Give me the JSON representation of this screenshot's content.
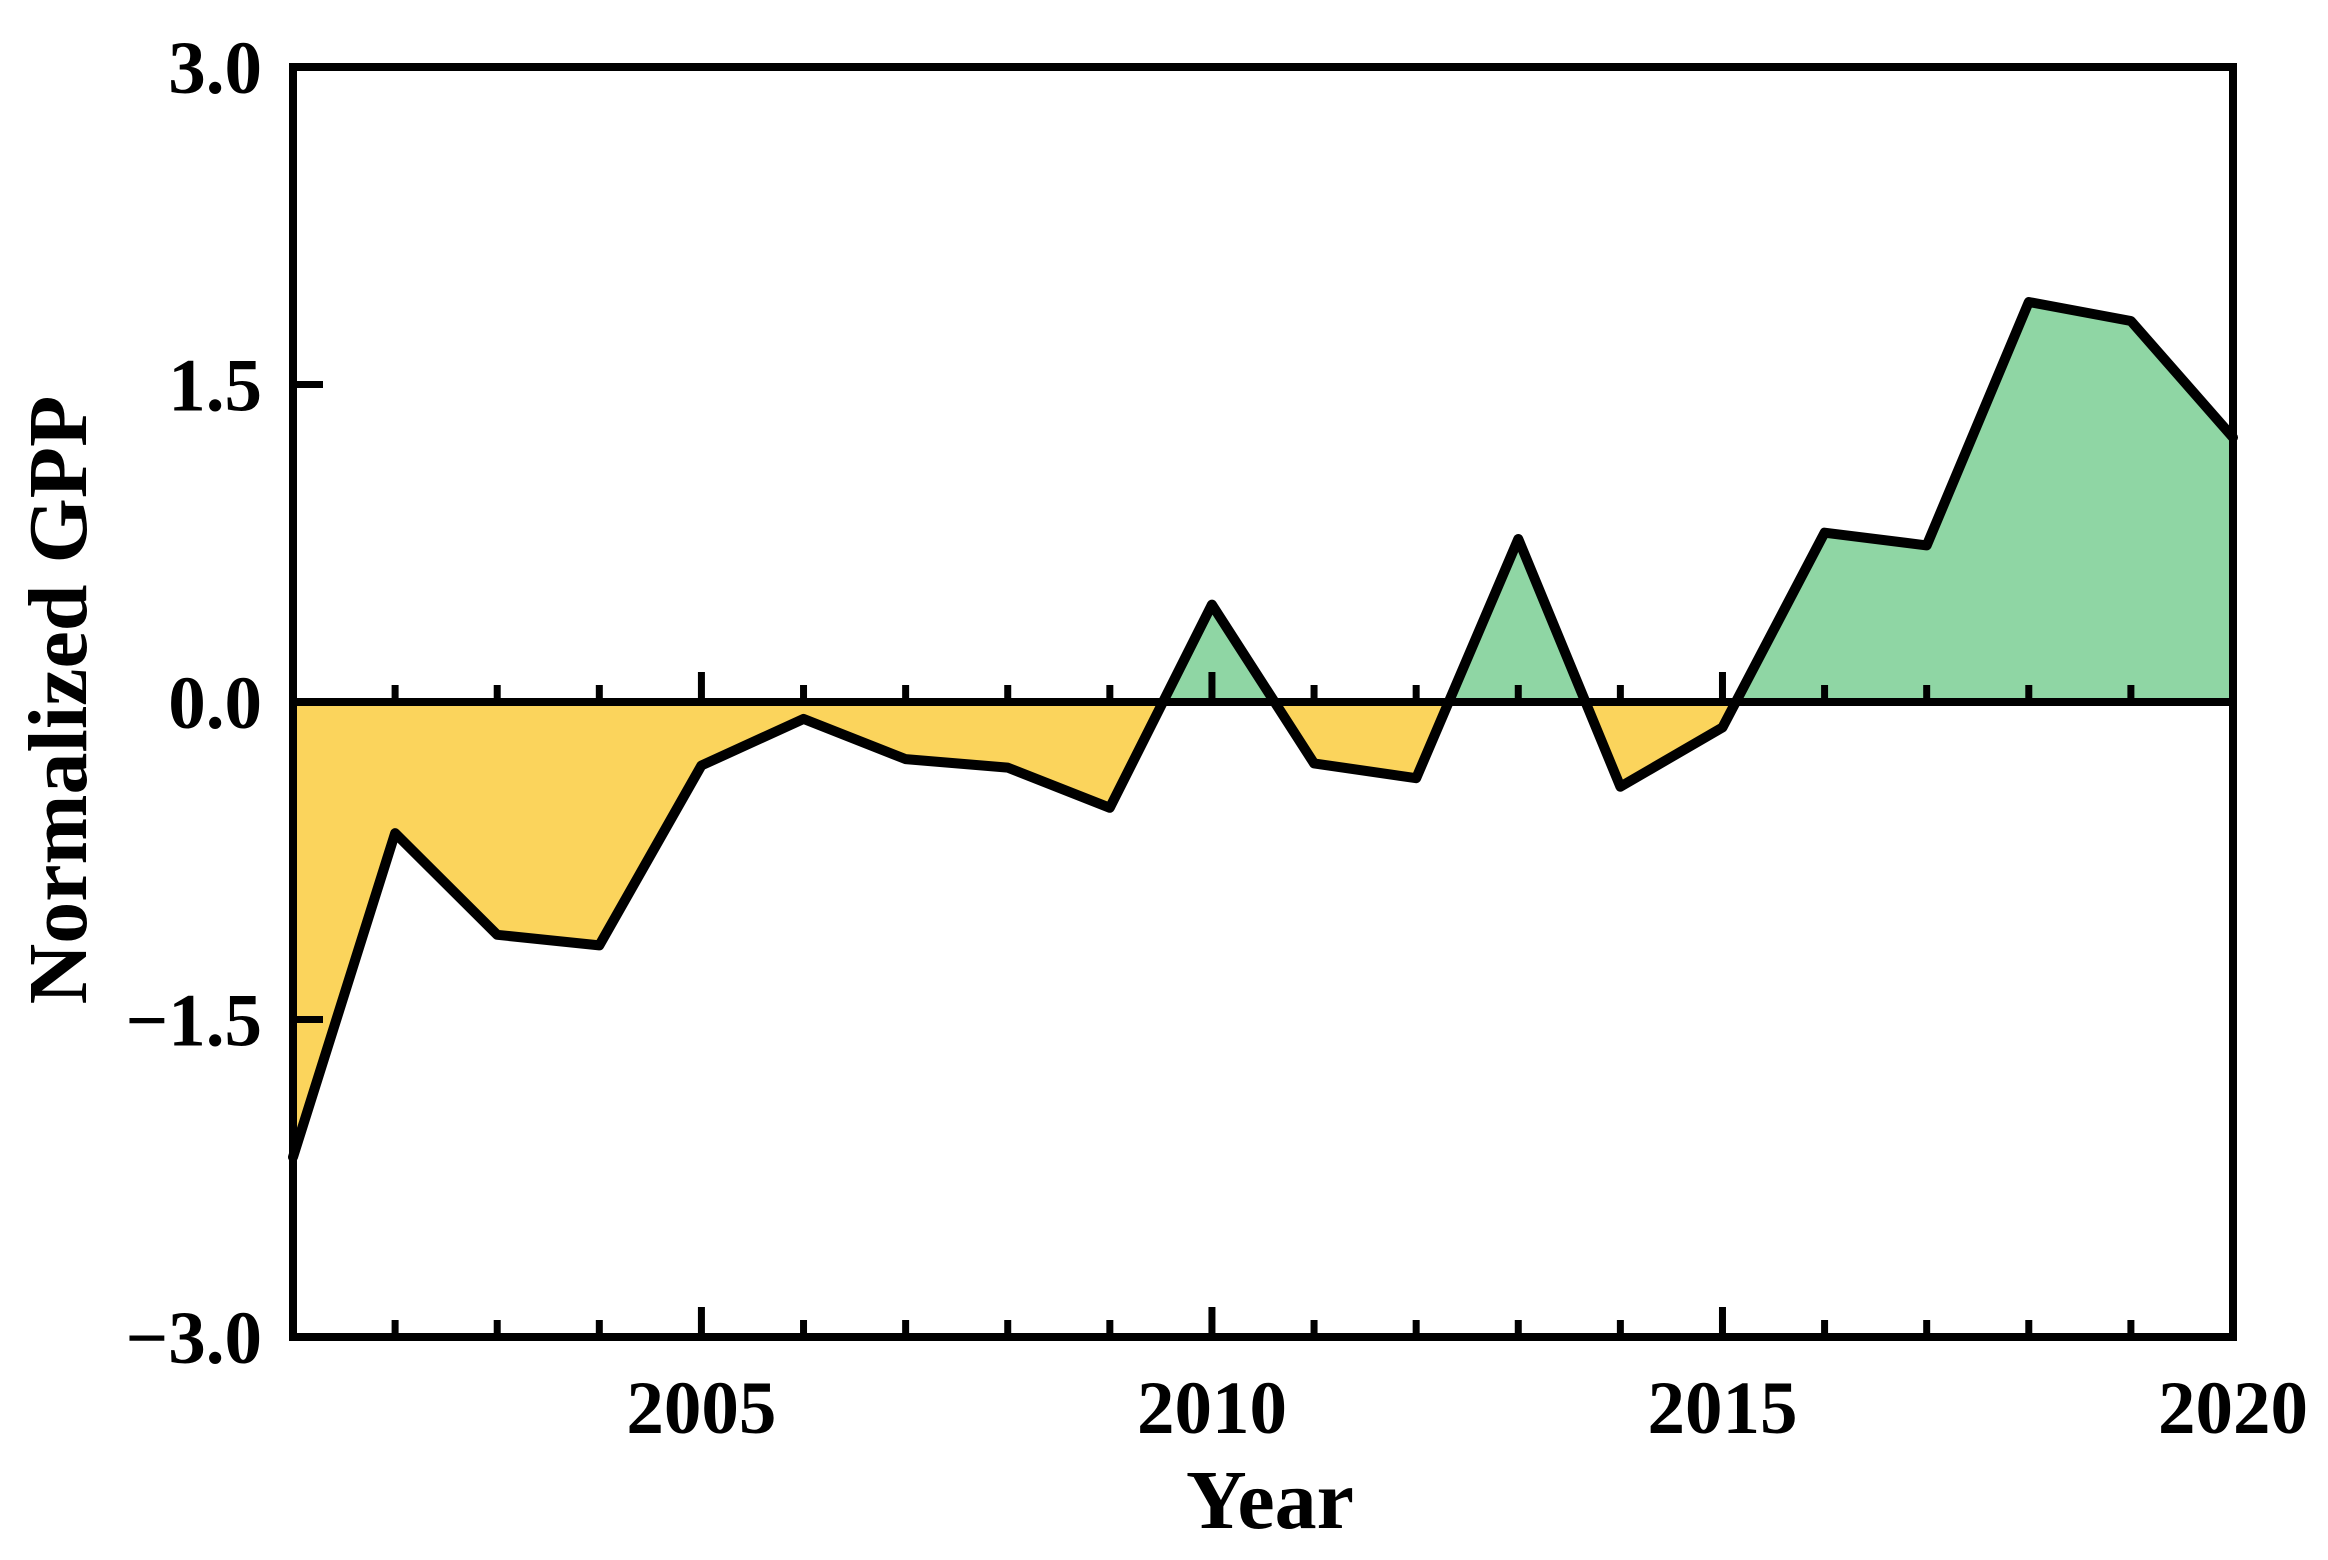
{
  "figure": {
    "background": "#ffffff",
    "axis_color": "#000000"
  },
  "chart_data": {
    "type": "area",
    "series_name": "Normalized GPP",
    "x": [
      2001,
      2002,
      2003,
      2004,
      2005,
      2006,
      2007,
      2008,
      2009,
      2010,
      2011,
      2012,
      2013,
      2014,
      2015,
      2016,
      2017,
      2018,
      2019,
      2020
    ],
    "values": [
      -2.15,
      -0.62,
      -1.1,
      -1.15,
      -0.3,
      -0.08,
      -0.27,
      -0.31,
      -0.5,
      0.46,
      -0.29,
      -0.36,
      0.77,
      -0.4,
      -0.12,
      0.8,
      0.74,
      1.89,
      1.8,
      1.25
    ],
    "baseline": 0,
    "title": "",
    "xlabel": "Year",
    "ylabel": "Normalized  GPP",
    "xlim": [
      2001,
      2020
    ],
    "ylim": [
      -3.0,
      3.0
    ],
    "x_major_ticks": [
      2005,
      2010,
      2015,
      2020
    ],
    "x_tick_labels": [
      "2005",
      "2010",
      "2015",
      "2020"
    ],
    "x_minor_tick_years": [
      2002,
      2003,
      2004,
      2006,
      2007,
      2008,
      2009,
      2011,
      2012,
      2013,
      2014,
      2016,
      2017,
      2018,
      2019
    ],
    "y_major_ticks": [
      3.0,
      1.5,
      0.0,
      -1.5,
      -3.0
    ],
    "y_tick_labels": [
      "3.0",
      "1.5",
      "0.0",
      "−1.5",
      "−3.0"
    ],
    "grid": false,
    "legend": "none",
    "positive_fill_color": "#8FD6A4",
    "negative_fill_color": "#FBD45C",
    "line_color": "#000000"
  }
}
